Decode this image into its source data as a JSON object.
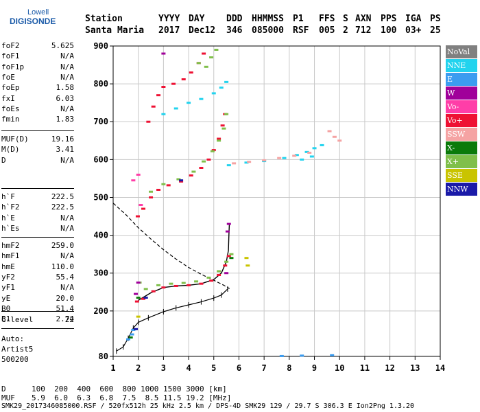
{
  "logo": {
    "line1": "Lowell",
    "line2": "DIGISONDE"
  },
  "header": {
    "labels": [
      "Station",
      "YYYY",
      "DAY",
      "DDD",
      "HHMMSS",
      "P1",
      "FFS",
      "S",
      "AXN",
      "PPS",
      "IGA",
      "PS"
    ],
    "values": [
      "Santa Maria",
      "2017",
      "Dec12",
      "346",
      "085000",
      "RSF",
      "005",
      "2",
      "712",
      "100",
      "03+",
      "25"
    ]
  },
  "params_group1": [
    {
      "name": "foF2",
      "value": "5.625"
    },
    {
      "name": "foF1",
      "value": "N/A"
    },
    {
      "name": "foF1p",
      "value": "N/A"
    },
    {
      "name": "foE",
      "value": "N/A"
    },
    {
      "name": "foEp",
      "value": "1.58"
    },
    {
      "name": "fxI",
      "value": "6.03"
    },
    {
      "name": "foEs",
      "value": "N/A"
    },
    {
      "name": "fmin",
      "value": "1.83"
    }
  ],
  "params_group2": [
    {
      "name": "MUF(D)",
      "value": "19.16"
    },
    {
      "name": "M(D)",
      "value": "3.41"
    },
    {
      "name": "D",
      "value": "N/A"
    }
  ],
  "params_group3": [
    {
      "name": "h`F",
      "value": "222.5"
    },
    {
      "name": "h`F2",
      "value": "222.5"
    },
    {
      "name": "h`E",
      "value": "N/A"
    },
    {
      "name": "h`Es",
      "value": "N/A"
    }
  ],
  "params_group4": [
    {
      "name": "hmF2",
      "value": "259.0"
    },
    {
      "name": "hmF1",
      "value": "N/A"
    },
    {
      "name": "hmE",
      "value": "110.0"
    },
    {
      "name": "yF2",
      "value": "55.4"
    },
    {
      "name": "yF1",
      "value": "N/A"
    },
    {
      "name": "yE",
      "value": "20.0"
    },
    {
      "name": "B0",
      "value": "51.4"
    },
    {
      "name": "B1",
      "value": "2.74"
    }
  ],
  "params_group5": [
    {
      "name": "C-level",
      "value": "22"
    }
  ],
  "auto": {
    "line1": "Auto:",
    "line2": "Artist5",
    "line3": "500200"
  },
  "legend": [
    {
      "label": "NoVal",
      "color": "#808080"
    },
    {
      "label": "NNE",
      "color": "#22d3ee"
    },
    {
      "label": "E",
      "color": "#3b9cf0"
    },
    {
      "label": "W",
      "color": "#a0009a"
    },
    {
      "label": "Vo-",
      "color": "#ff3ea8"
    },
    {
      "label": "Vo+",
      "color": "#ee1133"
    },
    {
      "label": "SSW",
      "color": "#f5a3a3"
    },
    {
      "label": "X-",
      "color": "#0a7a0a"
    },
    {
      "label": "X+",
      "color": "#7fbf4a"
    },
    {
      "label": "SSE",
      "color": "#c9c400"
    },
    {
      "label": "NNW",
      "color": "#1a1aa8"
    }
  ],
  "footer": {
    "d_label": "D",
    "d_values": "100  200  400  600  800 1000 1500 3000 [km]",
    "muf_label": "MUF",
    "muf_values": "5.9  6.0  6.3  6.8  7.5  8.5 11.5 19.2 [MHz]",
    "file_line": "SMK29_2017346085000.RSF / 520fx512h 25 kHz 2.5 km / DPS-4D SMK29 129 / 29.7 S 306.3 E Ion2Png 1.3.20"
  },
  "chart_data": {
    "type": "scatter",
    "title": "",
    "xlabel": "",
    "ylabel": "",
    "xlim": [
      1,
      14
    ],
    "ylim": [
      80,
      900
    ],
    "x_ticks": [
      1,
      2,
      3,
      4,
      5,
      6,
      7,
      8,
      9,
      10,
      11,
      12,
      13,
      14
    ],
    "y_ticks": [
      80,
      200,
      300,
      400,
      500,
      600,
      700,
      800,
      900
    ],
    "grid": true,
    "legend_position": "right",
    "series": [
      {
        "mode": "Vo+",
        "color": "#ee1133",
        "points": [
          [
            1.95,
            225
          ],
          [
            2.2,
            232
          ],
          [
            2.6,
            252
          ],
          [
            3.0,
            262
          ],
          [
            3.5,
            266
          ],
          [
            4.0,
            268
          ],
          [
            4.5,
            272
          ],
          [
            4.9,
            280
          ],
          [
            5.2,
            295
          ],
          [
            5.45,
            320
          ],
          [
            5.6,
            345
          ],
          [
            1.98,
            450
          ],
          [
            2.2,
            470
          ],
          [
            2.5,
            500
          ],
          [
            2.8,
            520
          ],
          [
            3.2,
            532
          ],
          [
            3.7,
            542
          ],
          [
            4.1,
            558
          ],
          [
            4.5,
            578
          ],
          [
            4.8,
            600
          ],
          [
            5.0,
            625
          ],
          [
            5.2,
            655
          ],
          [
            5.35,
            690
          ],
          [
            5.45,
            720
          ],
          [
            2.4,
            700
          ],
          [
            2.6,
            740
          ],
          [
            2.8,
            770
          ],
          [
            3.0,
            792
          ],
          [
            3.4,
            800
          ],
          [
            3.8,
            812
          ],
          [
            4.1,
            830
          ],
          [
            4.4,
            855
          ],
          [
            4.6,
            880
          ]
        ]
      },
      {
        "mode": "X+",
        "color": "#7fbf4a",
        "points": [
          [
            2.05,
            275
          ],
          [
            2.3,
            258
          ],
          [
            2.8,
            268
          ],
          [
            3.3,
            272
          ],
          [
            3.8,
            274
          ],
          [
            4.3,
            278
          ],
          [
            4.8,
            288
          ],
          [
            5.2,
            305
          ],
          [
            5.5,
            330
          ],
          [
            5.7,
            350
          ],
          [
            2.5,
            515
          ],
          [
            3.0,
            535
          ],
          [
            3.6,
            548
          ],
          [
            4.2,
            568
          ],
          [
            4.6,
            595
          ],
          [
            4.95,
            622
          ],
          [
            5.2,
            650
          ],
          [
            5.4,
            682
          ],
          [
            5.5,
            720
          ],
          [
            4.7,
            845
          ],
          [
            4.9,
            870
          ],
          [
            5.1,
            890
          ],
          [
            4.4,
            855
          ]
        ]
      },
      {
        "mode": "NNE",
        "color": "#22d3ee",
        "points": [
          [
            3.0,
            720
          ],
          [
            3.5,
            735
          ],
          [
            4.0,
            750
          ],
          [
            4.5,
            760
          ],
          [
            5.0,
            775
          ],
          [
            5.3,
            790
          ],
          [
            5.5,
            805
          ],
          [
            5.6,
            585
          ],
          [
            6.3,
            592
          ],
          [
            7.0,
            596
          ],
          [
            7.8,
            604
          ],
          [
            8.3,
            612
          ],
          [
            8.7,
            620
          ],
          [
            9.0,
            630
          ],
          [
            9.3,
            638
          ],
          [
            8.9,
            608
          ],
          [
            8.5,
            600
          ]
        ]
      },
      {
        "mode": "SSW",
        "color": "#f5a3a3",
        "points": [
          [
            5.8,
            590
          ],
          [
            6.4,
            594
          ],
          [
            7.0,
            598
          ],
          [
            7.6,
            604
          ],
          [
            8.2,
            610
          ],
          [
            8.8,
            618
          ],
          [
            9.6,
            675
          ],
          [
            9.8,
            660
          ],
          [
            10.0,
            650
          ]
        ]
      },
      {
        "mode": "W",
        "color": "#a0009a",
        "points": [
          [
            3.0,
            880
          ],
          [
            5.55,
            410
          ],
          [
            5.6,
            430
          ],
          [
            5.5,
            300
          ],
          [
            2.0,
            275
          ],
          [
            1.9,
            245
          ]
        ]
      },
      {
        "mode": "Vo-",
        "color": "#ff3ea8",
        "points": [
          [
            1.8,
            545
          ],
          [
            2.1,
            480
          ],
          [
            2.0,
            560
          ]
        ]
      },
      {
        "mode": "X-",
        "color": "#0a7a0a",
        "points": [
          [
            1.7,
            130
          ],
          [
            5.7,
            340
          ],
          [
            2.0,
            235
          ]
        ]
      },
      {
        "mode": "SSE",
        "color": "#c9c400",
        "points": [
          [
            6.3,
            340
          ],
          [
            6.35,
            320
          ],
          [
            2.0,
            185
          ]
        ]
      },
      {
        "mode": "E",
        "color": "#3b9cf0",
        "points": [
          [
            1.6,
            125
          ],
          [
            1.75,
            138
          ],
          [
            7.7,
            81
          ],
          [
            8.5,
            82
          ],
          [
            9.7,
            83
          ],
          [
            1.8,
            150
          ]
        ]
      },
      {
        "mode": "NNW",
        "color": "#1a1aa8",
        "points": [
          [
            1.9,
            152
          ],
          [
            2.3,
            235
          ],
          [
            3.7,
            545
          ]
        ]
      }
    ],
    "virtual_height_trace": [
      [
        1.13,
        94
      ],
      [
        1.4,
        105
      ],
      [
        1.6,
        128
      ],
      [
        1.8,
        155
      ],
      [
        2.0,
        170
      ],
      [
        2.4,
        182
      ],
      [
        3.0,
        198
      ],
      [
        3.5,
        208
      ],
      [
        4.0,
        216
      ],
      [
        4.5,
        224
      ],
      [
        5.0,
        234
      ],
      [
        5.3,
        242
      ],
      [
        5.55,
        258
      ]
    ],
    "profile_curve": [
      [
        1.0,
        485
      ],
      [
        1.5,
        455
      ],
      [
        2.0,
        420
      ],
      [
        2.5,
        390
      ],
      [
        3.0,
        362
      ],
      [
        3.5,
        337
      ],
      [
        4.0,
        315
      ],
      [
        4.5,
        297
      ],
      [
        5.0,
        281
      ],
      [
        5.4,
        268
      ],
      [
        5.625,
        259
      ]
    ],
    "trace_curve": [
      [
        2.0,
        228
      ],
      [
        2.5,
        248
      ],
      [
        3.0,
        262
      ],
      [
        3.5,
        266
      ],
      [
        4.0,
        268
      ],
      [
        4.5,
        272
      ],
      [
        5.0,
        283
      ],
      [
        5.3,
        300
      ],
      [
        5.5,
        330
      ],
      [
        5.58,
        360
      ],
      [
        5.6,
        400
      ],
      [
        5.62,
        430
      ]
    ]
  }
}
